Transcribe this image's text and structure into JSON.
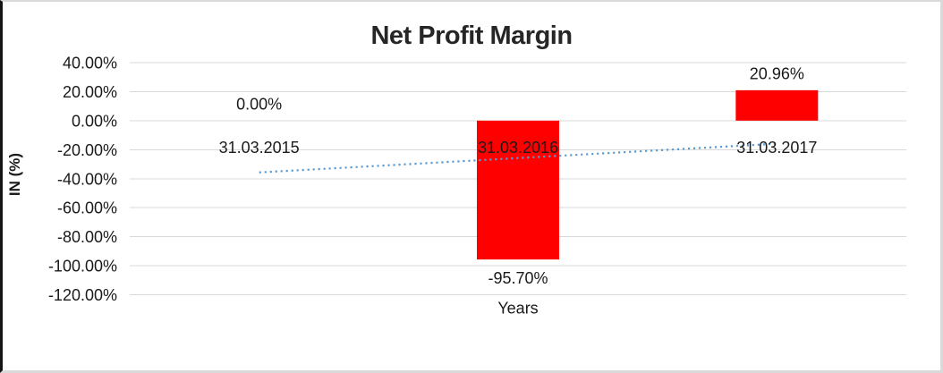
{
  "window": {
    "background": "#ffffff",
    "frame_border_color": "#d9d9d9",
    "frame_border_left_color": "#141414"
  },
  "chart_data": {
    "type": "bar",
    "title": "Net Profit Margin",
    "xlabel": "Years",
    "ylabel": "IN (%)",
    "categories": [
      "31.03.2015",
      "31.03.2016",
      "31.03.2017"
    ],
    "series": [
      {
        "name": "Net Profit Margin",
        "type": "bar",
        "color": "#ff0000",
        "values": [
          0,
          -95.7,
          20.96
        ],
        "data_labels": [
          "0.00%",
          "-95.70%",
          "20.96%"
        ]
      },
      {
        "name": "linear-trendline",
        "type": "dotted-line",
        "color": "#5b9bd5",
        "start_value": -35.7,
        "end_value": -15.9
      }
    ],
    "y_axis": {
      "min": -120,
      "max": 40,
      "step": 20,
      "ticks": [
        {
          "label": "40.00%",
          "value": 40
        },
        {
          "label": "20.00%",
          "value": 20
        },
        {
          "label": "0.00%",
          "value": 0
        },
        {
          "label": "-20.00%",
          "value": -20
        },
        {
          "label": "-40.00%",
          "value": -40
        },
        {
          "label": "-60.00%",
          "value": -60
        },
        {
          "label": "-80.00%",
          "value": -80
        },
        {
          "label": "-100.00%",
          "value": -100
        },
        {
          "label": "-120.00%",
          "value": -120
        }
      ]
    },
    "grid": true,
    "gridline_color": "#d9d9d9",
    "text_color": "#1a1a1a",
    "title_color": "#262626",
    "legend": false
  }
}
